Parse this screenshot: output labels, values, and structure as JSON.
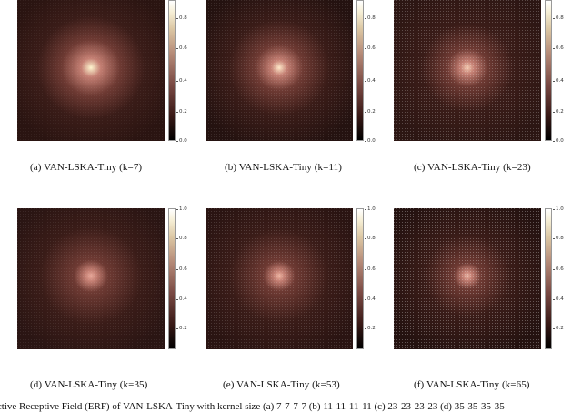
{
  "panels": [
    {
      "caption": "(a) VAN-LSKA-Tiny (k=7)",
      "ticks": [
        "0.8",
        "0.6",
        "0.4",
        "0.2",
        "0.0"
      ]
    },
    {
      "caption": "(b) VAN-LSKA-Tiny (k=11)",
      "ticks": [
        "0.8",
        "0.6",
        "0.4",
        "0.2",
        "0.0"
      ]
    },
    {
      "caption": "(c) VAN-LSKA-Tiny (k=23)",
      "ticks": [
        "0.8",
        "0.6",
        "0.4",
        "0.2",
        "0.0"
      ]
    },
    {
      "caption": "(d) VAN-LSKA-Tiny (k=35)",
      "ticks": [
        "1.0",
        "0.8",
        "0.6",
        "0.4",
        "0.2"
      ]
    },
    {
      "caption": "(e) VAN-LSKA-Tiny (k=53)",
      "ticks": [
        "1.0",
        "0.8",
        "0.6",
        "0.4",
        "0.2"
      ]
    },
    {
      "caption": "(f) VAN-LSKA-Tiny (k=65)",
      "ticks": [
        "1.0",
        "0.8",
        "0.6",
        "0.4",
        "0.2"
      ]
    }
  ],
  "figure_caption": "ective Receptive Field (ERF) of VAN-LSKA-Tiny with kernel size (a) 7-7-7-7 (b) 11-11-11-11 (c) 23-23-23-23 (d) 35-35-35-35"
}
